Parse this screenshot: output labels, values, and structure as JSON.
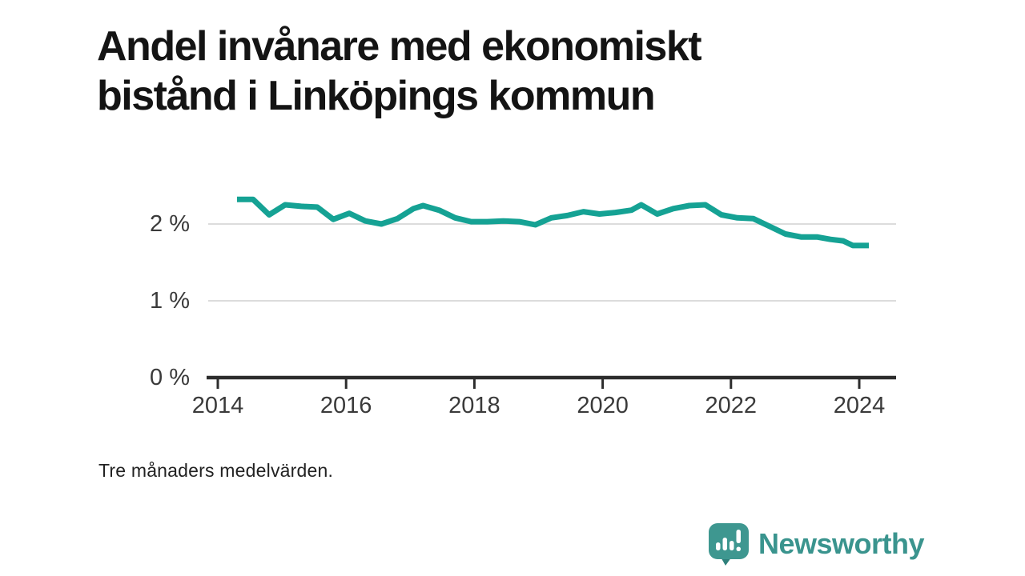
{
  "header": {
    "title_line1": "Andel invånare med ekonomiskt",
    "title_line2": "bistånd i Linköpings kommun"
  },
  "caption": "Tre månaders medelvärden.",
  "branding": {
    "name": "Newsworthy",
    "icon": "newsworthy-barchart-bubble-icon",
    "color": "#3a948e",
    "icon_color": "#3e9790",
    "icon_tail_color": "#2f807b"
  },
  "colors": {
    "line": "#15a294",
    "grid": "#dcdcdc",
    "axis": "#2d2d2d",
    "tick_text": "#3a3a3a",
    "title_text": "#141414"
  },
  "chart_data": {
    "type": "line",
    "title": "Andel invånare med ekonomiskt bistånd i Linköpings kommun",
    "subtitle": "Tre månaders medelvärden.",
    "xlabel": "",
    "ylabel": "",
    "unit": "%",
    "grid": "horizontal",
    "legend": "none",
    "xlim": [
      2013.85,
      2024.6
    ],
    "ylim": [
      0,
      2.55
    ],
    "y_ticks": [
      {
        "value": 0,
        "label": "0 %"
      },
      {
        "value": 1,
        "label": "1 %"
      },
      {
        "value": 2,
        "label": "2 %"
      }
    ],
    "x_ticks": [
      {
        "value": 2014,
        "label": "2014"
      },
      {
        "value": 2016,
        "label": "2016"
      },
      {
        "value": 2018,
        "label": "2018"
      },
      {
        "value": 2020,
        "label": "2020"
      },
      {
        "value": 2022,
        "label": "2022"
      },
      {
        "value": 2024,
        "label": "2024"
      }
    ],
    "series": [
      {
        "name": "Andel invånare med ekonomiskt bistånd",
        "x": [
          2014.3,
          2014.55,
          2014.8,
          2015.05,
          2015.3,
          2015.55,
          2015.8,
          2016.05,
          2016.3,
          2016.55,
          2016.8,
          2017.05,
          2017.2,
          2017.45,
          2017.7,
          2017.95,
          2018.2,
          2018.45,
          2018.7,
          2018.95,
          2019.2,
          2019.45,
          2019.7,
          2019.95,
          2020.2,
          2020.45,
          2020.6,
          2020.85,
          2021.1,
          2021.35,
          2021.6,
          2021.85,
          2022.1,
          2022.35,
          2022.6,
          2022.85,
          2023.1,
          2023.35,
          2023.55,
          2023.75,
          2023.9,
          2024.15
        ],
        "values": [
          2.32,
          2.32,
          2.12,
          2.25,
          2.23,
          2.22,
          2.06,
          2.14,
          2.04,
          2.0,
          2.07,
          2.2,
          2.24,
          2.18,
          2.08,
          2.03,
          2.03,
          2.04,
          2.03,
          1.99,
          2.08,
          2.11,
          2.16,
          2.13,
          2.15,
          2.18,
          2.25,
          2.13,
          2.2,
          2.24,
          2.25,
          2.12,
          2.08,
          2.07,
          1.97,
          1.87,
          1.83,
          1.83,
          1.8,
          1.78,
          1.72,
          1.72
        ]
      }
    ]
  }
}
